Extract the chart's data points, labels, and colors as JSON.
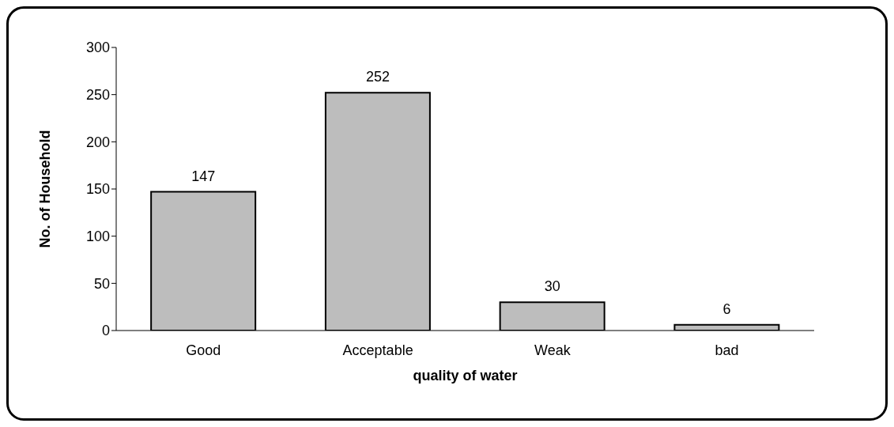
{
  "chart_data": {
    "type": "bar",
    "xlabel": "quality of water",
    "ylabel": "No. of Household",
    "categories": [
      "Good",
      "Acceptable",
      "Weak",
      "bad"
    ],
    "values": [
      147,
      252,
      30,
      6
    ],
    "color": "#bdbdbd",
    "ylim": [
      0,
      300
    ],
    "yticks": [
      0,
      50,
      100,
      150,
      200,
      250,
      300
    ],
    "data_labels": true
  }
}
